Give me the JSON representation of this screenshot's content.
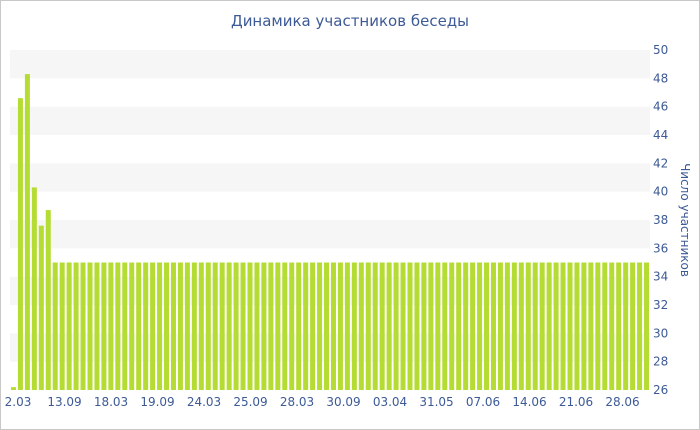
{
  "chart_data": {
    "type": "bar",
    "title": "Динамика участников беседы",
    "ylabel": "Число участников",
    "xlabel": "",
    "ylim": [
      26,
      50
    ],
    "y_ticks": [
      26,
      28,
      30,
      32,
      34,
      36,
      38,
      40,
      42,
      44,
      46,
      48,
      50
    ],
    "y_axis_side": "right",
    "grid": "alternating horizontal bands",
    "x_tick_labels": [
      "2.03",
      "13.09",
      "18.03",
      "19.09",
      "24.03",
      "25.09",
      "28.03",
      "30.09",
      "03.04",
      "31.05",
      "07.06",
      "14.06",
      "21.06",
      "28.06"
    ],
    "bar_color": "#b5dc33",
    "values": [
      26.2,
      46.6,
      48.3,
      40.3,
      37.6,
      38.7,
      35,
      35,
      35,
      35,
      35,
      35,
      35,
      35,
      35,
      35,
      35,
      35,
      35,
      35,
      35,
      35,
      35,
      35,
      35,
      35,
      35,
      35,
      35,
      35,
      35,
      35,
      35,
      35,
      35,
      35,
      35,
      35,
      35,
      35,
      35,
      35,
      35,
      35,
      35,
      35,
      35,
      35,
      35,
      35,
      35,
      35,
      35,
      35,
      35,
      35,
      35,
      35,
      35,
      35,
      35,
      35,
      35,
      35,
      35,
      35,
      35,
      35,
      35,
      35,
      35,
      35,
      35,
      35,
      35,
      35,
      35,
      35,
      35,
      35,
      35,
      35,
      35,
      35,
      35,
      35,
      35,
      35,
      35,
      35,
      35,
      35
    ]
  }
}
